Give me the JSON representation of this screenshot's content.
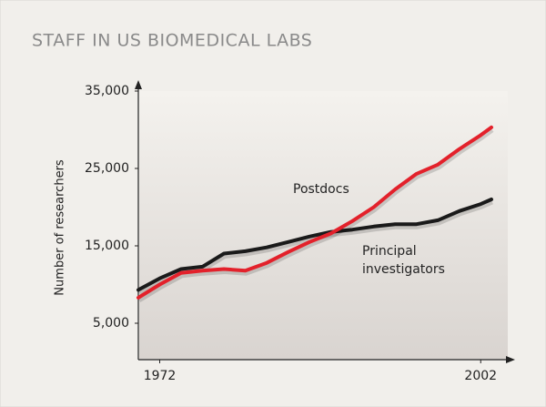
{
  "chart_data": {
    "type": "line",
    "title": "STAFF IN US BIOMEDICAL LABS",
    "y_label": "Number of researchers",
    "x": [
      1970,
      1972,
      1974,
      1976,
      1978,
      1980,
      1982,
      1984,
      1986,
      1988,
      1990,
      1992,
      1994,
      1996,
      1998,
      2000,
      2002,
      2003
    ],
    "series": [
      {
        "name": "Postdocs",
        "color": "#e3212b",
        "values": [
          8300,
          10000,
          11500,
          11800,
          12000,
          11800,
          12800,
          14200,
          15500,
          16600,
          18200,
          20000,
          22300,
          24300,
          25500,
          27500,
          29300,
          30300
        ]
      },
      {
        "name": "Principal investigators",
        "color": "#1a1a1a",
        "values": [
          9300,
          10800,
          12000,
          12300,
          14000,
          14300,
          14800,
          15500,
          16200,
          16800,
          17100,
          17500,
          17800,
          17800,
          18300,
          19500,
          20400,
          21000
        ]
      }
    ],
    "annotations": [
      {
        "lines": [
          "Postdocs"
        ]
      },
      {
        "lines": [
          "Principal",
          "investigators"
        ]
      }
    ],
    "xlim": [
      1970,
      2004.7
    ],
    "ylim": [
      0,
      35000
    ],
    "xticks": [
      1972,
      2002
    ],
    "yticks": [
      {
        "value": 5000,
        "label": "5,000"
      },
      {
        "value": 15000,
        "label": "15,000"
      },
      {
        "value": 25000,
        "label": "25,000"
      },
      {
        "value": 35000,
        "label": "35,000"
      }
    ],
    "grid": false
  }
}
